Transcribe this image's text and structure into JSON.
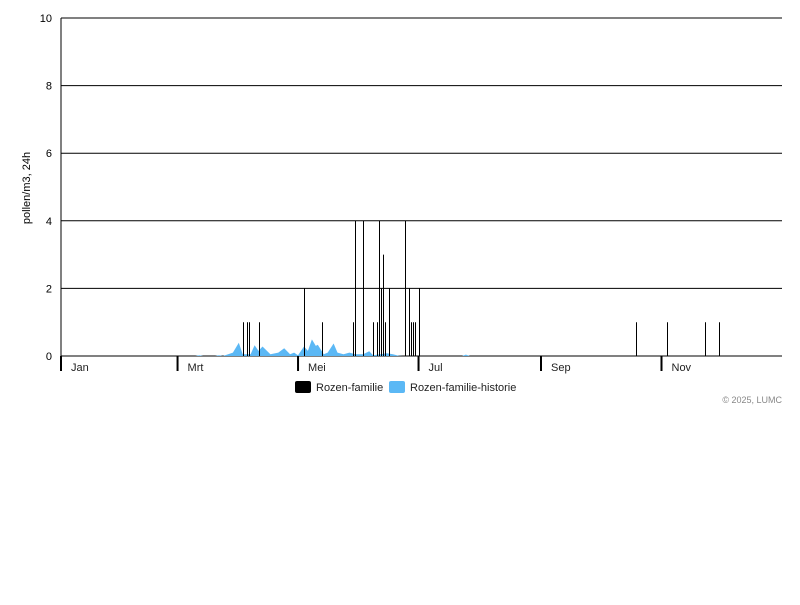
{
  "chart_data": {
    "type": "bar",
    "title": "",
    "xlabel": "",
    "ylabel": "pollen/m3, 24h",
    "ylim": [
      0,
      10
    ],
    "yticks": [
      0,
      2,
      4,
      6,
      8,
      10
    ],
    "xlim": [
      "2025-01-01",
      "2025-12-31"
    ],
    "xtick_labels": [
      {
        "label": "Jan",
        "date": "2025-01-01"
      },
      {
        "label": "Mrt",
        "date": "2025-03-01"
      },
      {
        "label": "Mei",
        "date": "2025-05-01"
      },
      {
        "label": "Jul",
        "date": "2025-07-01"
      },
      {
        "label": "Sep",
        "date": "2025-09-01"
      },
      {
        "label": "Nov",
        "date": "2025-11-01"
      }
    ],
    "grid": "horizontal",
    "legend_placement": "bottom",
    "series": [
      {
        "name": "Rozen-familie",
        "type": "bar",
        "color": "#000000",
        "points": [
          [
            "2025-04-03",
            1
          ],
          [
            "2025-04-05",
            1
          ],
          [
            "2025-04-06",
            1
          ],
          [
            "2025-04-11",
            1
          ],
          [
            "2025-05-04",
            2
          ],
          [
            "2025-05-13",
            1
          ],
          [
            "2025-05-29",
            1
          ],
          [
            "2025-05-30",
            4
          ],
          [
            "2025-06-03",
            4
          ],
          [
            "2025-06-08",
            1
          ],
          [
            "2025-06-10",
            1
          ],
          [
            "2025-06-11",
            4
          ],
          [
            "2025-06-12",
            2
          ],
          [
            "2025-06-13",
            3
          ],
          [
            "2025-06-14",
            1
          ],
          [
            "2025-06-16",
            2
          ],
          [
            "2025-06-24",
            4
          ],
          [
            "2025-06-26",
            2
          ],
          [
            "2025-06-27",
            1
          ],
          [
            "2025-06-28",
            1
          ],
          [
            "2025-06-29",
            1
          ],
          [
            "2025-07-01",
            2
          ],
          [
            "2025-10-19",
            1
          ],
          [
            "2025-11-04",
            1
          ],
          [
            "2025-11-23",
            1
          ],
          [
            "2025-11-30",
            1
          ]
        ]
      },
      {
        "name": "Rozen-familie-historie",
        "type": "area",
        "color": "#5bb8f5",
        "points": [
          [
            "2025-03-10",
            0
          ],
          [
            "2025-03-12",
            0.02
          ],
          [
            "2025-03-14",
            0
          ],
          [
            "2025-03-20",
            0
          ],
          [
            "2025-03-22",
            0.02
          ],
          [
            "2025-03-24",
            0
          ],
          [
            "2025-03-29",
            0.1
          ],
          [
            "2025-04-01",
            0.39
          ],
          [
            "2025-04-03",
            0.05
          ],
          [
            "2025-04-07",
            0.05
          ],
          [
            "2025-04-09",
            0.32
          ],
          [
            "2025-04-11",
            0.15
          ],
          [
            "2025-04-13",
            0.28
          ],
          [
            "2025-04-17",
            0.05
          ],
          [
            "2025-04-21",
            0.1
          ],
          [
            "2025-04-24",
            0.23
          ],
          [
            "2025-04-27",
            0.05
          ],
          [
            "2025-04-29",
            0.1
          ],
          [
            "2025-05-01",
            0.02
          ],
          [
            "2025-05-04",
            0.28
          ],
          [
            "2025-05-06",
            0.15
          ],
          [
            "2025-05-08",
            0.49
          ],
          [
            "2025-05-10",
            0.3
          ],
          [
            "2025-05-11",
            0.33
          ],
          [
            "2025-05-14",
            0.05
          ],
          [
            "2025-05-16",
            0.1
          ],
          [
            "2025-05-19",
            0.37
          ],
          [
            "2025-05-21",
            0.1
          ],
          [
            "2025-05-24",
            0.05
          ],
          [
            "2025-05-27",
            0.1
          ],
          [
            "2025-05-30",
            0.05
          ],
          [
            "2025-06-03",
            0.05
          ],
          [
            "2025-06-06",
            0.14
          ],
          [
            "2025-06-08",
            0.02
          ],
          [
            "2025-06-15",
            0.08
          ],
          [
            "2025-06-18",
            0.05
          ],
          [
            "2025-06-21",
            0.01
          ],
          [
            "2025-06-23",
            0
          ],
          [
            "2025-07-23",
            0
          ],
          [
            "2025-07-25",
            0.04
          ],
          [
            "2025-07-27",
            0
          ]
        ]
      }
    ],
    "copyright": "© 2025, LUMC"
  }
}
